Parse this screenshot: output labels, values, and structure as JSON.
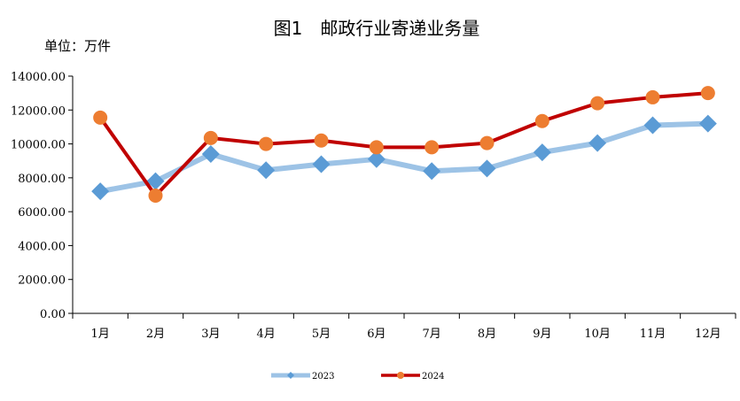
{
  "chart_data": {
    "type": "line",
    "title": "图1　邮政行业寄递业务量",
    "unit_label": "单位：万件",
    "categories": [
      "1月",
      "2月",
      "3月",
      "4月",
      "5月",
      "6月",
      "7月",
      "8月",
      "9月",
      "10月",
      "11月",
      "12月"
    ],
    "yticks": [
      "0.00",
      "2000.00",
      "4000.00",
      "6000.00",
      "8000.00",
      "10000.00",
      "12000.00",
      "14000.00"
    ],
    "ylim": [
      0,
      14000
    ],
    "grid": false,
    "legend_position": "bottom",
    "series": [
      {
        "name": "2023",
        "color": "#9dc3e6",
        "marker": "diamond",
        "marker_color": "#5b9bd5",
        "values": [
          7200,
          7800,
          9400,
          8450,
          8800,
          9100,
          8400,
          8550,
          9500,
          10050,
          11100,
          11200
        ]
      },
      {
        "name": "2024",
        "color": "#c00000",
        "marker": "circle",
        "marker_color": "#ed7d31",
        "values": [
          11550,
          6950,
          10350,
          10000,
          10200,
          9800,
          9800,
          10050,
          11350,
          12400,
          12750,
          13000
        ]
      }
    ]
  }
}
